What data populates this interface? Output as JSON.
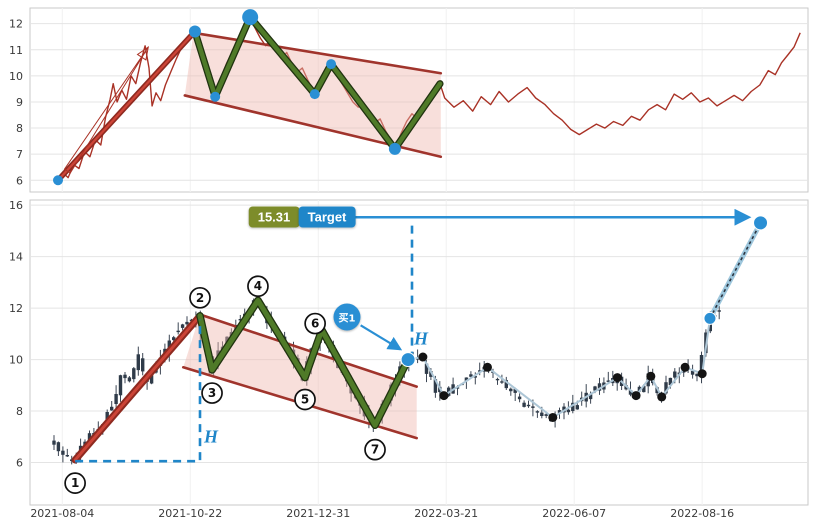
{
  "colors": {
    "background": "#ffffff",
    "grid": "#e4e4e4",
    "border": "#c9c9c9",
    "axis_text": "#3a3a3a",
    "price_red": "#a93226",
    "pole_red": "#8e2a20",
    "pole_core": "#cc4437",
    "channel_line": "#a0342c",
    "channel_fill": "#f0b9b0",
    "zigzag_green": "#4f7a28",
    "zigzag_edge": "#203310",
    "blue": "#2a8fd4",
    "dash_blue": "#1f86c9",
    "candle": "#2f3b49",
    "wick": "#3c4654",
    "post_line": "#adc6d6",
    "rally_line": "#9ec7dd",
    "rally_dash": "#2b3440",
    "black_dot": "#141414",
    "target_value_bg": "#7d8c2a",
    "target_label_bg": "#1f86c9",
    "circle_stroke": "#111111"
  },
  "annotations": {
    "target_value": "15.31",
    "target_label": "Target",
    "buy_label": "买1",
    "h_label": "H"
  },
  "chart_data": [
    {
      "id": "flag-pattern-sketch",
      "type": "line",
      "ylim": [
        5.55,
        12.6
      ],
      "yticks": [
        6,
        7,
        8,
        9,
        10,
        11,
        12
      ],
      "grid": true,
      "price_line": [
        [
          0.036,
          6.0
        ],
        [
          0.042,
          6.3
        ],
        [
          0.049,
          6.1
        ],
        [
          0.056,
          6.6
        ],
        [
          0.063,
          6.45
        ],
        [
          0.07,
          7.1
        ],
        [
          0.077,
          6.9
        ],
        [
          0.084,
          7.55
        ],
        [
          0.091,
          7.35
        ],
        [
          0.097,
          8.4
        ],
        [
          0.103,
          9.1
        ],
        [
          0.107,
          9.7
        ],
        [
          0.112,
          9.0
        ],
        [
          0.118,
          9.45
        ],
        [
          0.124,
          9.1
        ],
        [
          0.13,
          10.0
        ],
        [
          0.136,
          9.7
        ],
        [
          0.142,
          10.5
        ],
        [
          0.148,
          11.15
        ],
        [
          0.153,
          10.3
        ],
        [
          0.157,
          8.85
        ],
        [
          0.162,
          9.35
        ],
        [
          0.168,
          9.05
        ],
        [
          0.174,
          9.65
        ],
        [
          0.181,
          10.15
        ],
        [
          0.188,
          10.65
        ],
        [
          0.195,
          11.1
        ],
        [
          0.202,
          11.3
        ],
        [
          0.208,
          11.5
        ],
        [
          0.213,
          11.7
        ],
        [
          0.22,
          11.2
        ],
        [
          0.227,
          10.35
        ],
        [
          0.233,
          9.75
        ],
        [
          0.238,
          9.2
        ],
        [
          0.245,
          9.9
        ],
        [
          0.253,
          10.5
        ],
        [
          0.261,
          10.95
        ],
        [
          0.269,
          11.5
        ],
        [
          0.276,
          11.95
        ],
        [
          0.283,
          12.25
        ],
        [
          0.289,
          11.85
        ],
        [
          0.296,
          11.45
        ],
        [
          0.303,
          11.15
        ],
        [
          0.309,
          11.4
        ],
        [
          0.316,
          10.95
        ],
        [
          0.323,
          10.65
        ],
        [
          0.33,
          10.9
        ],
        [
          0.337,
          10.45
        ],
        [
          0.344,
          10.15
        ],
        [
          0.35,
          10.3
        ],
        [
          0.357,
          9.85
        ],
        [
          0.362,
          9.55
        ],
        [
          0.366,
          9.3
        ],
        [
          0.372,
          9.85
        ],
        [
          0.379,
          10.15
        ],
        [
          0.387,
          10.45
        ],
        [
          0.394,
          10.05
        ],
        [
          0.401,
          9.7
        ],
        [
          0.408,
          9.35
        ],
        [
          0.415,
          9.0
        ],
        [
          0.422,
          8.8
        ],
        [
          0.429,
          8.95
        ],
        [
          0.436,
          8.5
        ],
        [
          0.443,
          8.2
        ],
        [
          0.45,
          8.35
        ],
        [
          0.457,
          7.9
        ],
        [
          0.463,
          7.6
        ],
        [
          0.469,
          7.2
        ],
        [
          0.477,
          7.8
        ],
        [
          0.484,
          8.25
        ],
        [
          0.491,
          8.55
        ],
        [
          0.498,
          8.35
        ],
        [
          0.505,
          8.75
        ],
        [
          0.512,
          9.05
        ],
        [
          0.519,
          9.4
        ],
        [
          0.527,
          9.7
        ],
        [
          0.533,
          9.15
        ],
        [
          0.545,
          8.8
        ],
        [
          0.557,
          9.05
        ],
        [
          0.569,
          8.65
        ],
        [
          0.58,
          9.2
        ],
        [
          0.592,
          8.9
        ],
        [
          0.603,
          9.4
        ],
        [
          0.615,
          9.0
        ],
        [
          0.627,
          9.3
        ],
        [
          0.639,
          9.55
        ],
        [
          0.65,
          9.15
        ],
        [
          0.662,
          8.9
        ],
        [
          0.673,
          8.55
        ],
        [
          0.684,
          8.3
        ],
        [
          0.695,
          7.95
        ],
        [
          0.706,
          7.75
        ],
        [
          0.717,
          7.95
        ],
        [
          0.728,
          8.15
        ],
        [
          0.739,
          8.0
        ],
        [
          0.75,
          8.25
        ],
        [
          0.762,
          8.1
        ],
        [
          0.773,
          8.45
        ],
        [
          0.784,
          8.3
        ],
        [
          0.795,
          8.7
        ],
        [
          0.806,
          8.9
        ],
        [
          0.817,
          8.7
        ],
        [
          0.828,
          9.3
        ],
        [
          0.839,
          9.1
        ],
        [
          0.85,
          9.35
        ],
        [
          0.861,
          9.0
        ],
        [
          0.872,
          9.15
        ],
        [
          0.883,
          8.85
        ],
        [
          0.894,
          9.05
        ],
        [
          0.905,
          9.25
        ],
        [
          0.916,
          9.05
        ],
        [
          0.927,
          9.4
        ],
        [
          0.938,
          9.65
        ],
        [
          0.949,
          10.2
        ],
        [
          0.958,
          10.05
        ],
        [
          0.966,
          10.5
        ],
        [
          0.974,
          10.8
        ],
        [
          0.982,
          11.1
        ],
        [
          0.99,
          11.65
        ]
      ],
      "pole": {
        "from": [
          0.036,
          6.0
        ],
        "to": [
          0.212,
          11.7
        ]
      },
      "pole_arrow": {
        "from": [
          0.048,
          6.35
        ],
        "to": [
          0.152,
          11.1
        ]
      },
      "channel": {
        "upper": [
          [
            0.21,
            11.65
          ],
          [
            0.528,
            10.1
          ]
        ],
        "lower": [
          [
            0.199,
            9.25
          ],
          [
            0.528,
            6.9
          ]
        ]
      },
      "zigzag": [
        [
          0.212,
          11.7
        ],
        [
          0.238,
          9.2
        ],
        [
          0.283,
          12.25
        ],
        [
          0.366,
          9.3
        ],
        [
          0.387,
          10.45
        ],
        [
          0.469,
          7.2
        ],
        [
          0.527,
          9.7
        ]
      ],
      "blue_dots": [
        [
          0.036,
          6.0,
          5
        ],
        [
          0.212,
          11.7,
          6
        ],
        [
          0.238,
          9.2,
          5
        ],
        [
          0.283,
          12.25,
          8
        ],
        [
          0.366,
          9.3,
          5
        ],
        [
          0.387,
          10.45,
          5
        ],
        [
          0.469,
          7.2,
          6
        ]
      ]
    },
    {
      "id": "candlestick-chart",
      "type": "candlestick",
      "ylim": [
        4.35,
        16.2
      ],
      "yticks": [
        6,
        8,
        10,
        12,
        14,
        16
      ],
      "grid": true,
      "xticks": [
        {
          "t": 0.0415,
          "label": "2021-08-04"
        },
        {
          "t": 0.206,
          "label": "2021-10-22"
        },
        {
          "t": 0.3705,
          "label": "2021-12-31"
        },
        {
          "t": 0.535,
          "label": "2022-03-21"
        },
        {
          "t": 0.6995,
          "label": "2022-06-07"
        },
        {
          "t": 0.864,
          "label": "2022-08-16"
        }
      ],
      "price_path": [
        [
          0.03,
          6.85
        ],
        [
          0.04,
          6.4
        ],
        [
          0.052,
          6.2
        ],
        [
          0.058,
          6.1
        ],
        [
          0.068,
          6.55
        ],
        [
          0.078,
          6.95
        ],
        [
          0.088,
          7.3
        ],
        [
          0.098,
          7.7
        ],
        [
          0.106,
          8.2
        ],
        [
          0.113,
          8.55
        ],
        [
          0.12,
          9.55
        ],
        [
          0.127,
          9.05
        ],
        [
          0.134,
          9.35
        ],
        [
          0.141,
          10.2
        ],
        [
          0.147,
          9.45
        ],
        [
          0.154,
          9.1
        ],
        [
          0.162,
          9.6
        ],
        [
          0.17,
          10.0
        ],
        [
          0.178,
          10.5
        ],
        [
          0.188,
          11.0
        ],
        [
          0.2,
          11.35
        ],
        [
          0.21,
          11.6
        ],
        [
          0.218,
          11.7
        ],
        [
          0.226,
          10.6
        ],
        [
          0.234,
          9.6
        ],
        [
          0.242,
          10.1
        ],
        [
          0.252,
          10.7
        ],
        [
          0.262,
          11.15
        ],
        [
          0.272,
          11.6
        ],
        [
          0.282,
          11.95
        ],
        [
          0.293,
          12.3
        ],
        [
          0.302,
          11.8
        ],
        [
          0.312,
          11.3
        ],
        [
          0.322,
          10.85
        ],
        [
          0.332,
          10.45
        ],
        [
          0.342,
          9.9
        ],
        [
          0.353,
          9.3
        ],
        [
          0.363,
          10.2
        ],
        [
          0.375,
          11.15
        ],
        [
          0.386,
          10.5
        ],
        [
          0.396,
          9.9
        ],
        [
          0.406,
          9.3
        ],
        [
          0.416,
          8.7
        ],
        [
          0.426,
          8.2
        ],
        [
          0.435,
          7.8
        ],
        [
          0.443,
          7.45
        ],
        [
          0.452,
          8.0
        ],
        [
          0.462,
          8.6
        ],
        [
          0.472,
          9.2
        ],
        [
          0.48,
          9.7
        ],
        [
          0.486,
          10.0
        ],
        [
          0.496,
          10.15
        ],
        [
          0.505,
          10.1
        ],
        [
          0.515,
          9.4
        ],
        [
          0.524,
          8.85
        ],
        [
          0.532,
          8.6
        ],
        [
          0.545,
          8.9
        ],
        [
          0.558,
          9.2
        ],
        [
          0.572,
          9.45
        ],
        [
          0.588,
          9.7
        ],
        [
          0.6,
          9.3
        ],
        [
          0.614,
          8.95
        ],
        [
          0.628,
          8.55
        ],
        [
          0.642,
          8.2
        ],
        [
          0.658,
          7.95
        ],
        [
          0.672,
          7.75
        ],
        [
          0.685,
          8.0
        ],
        [
          0.7,
          8.2
        ],
        [
          0.714,
          8.5
        ],
        [
          0.728,
          8.8
        ],
        [
          0.742,
          9.1
        ],
        [
          0.755,
          9.3
        ],
        [
          0.766,
          8.95
        ],
        [
          0.779,
          8.6
        ],
        [
          0.789,
          9.0
        ],
        [
          0.798,
          9.35
        ],
        [
          0.806,
          8.9
        ],
        [
          0.812,
          8.55
        ],
        [
          0.822,
          9.1
        ],
        [
          0.832,
          9.45
        ],
        [
          0.842,
          9.7
        ],
        [
          0.852,
          9.55
        ],
        [
          0.862,
          9.45
        ],
        [
          0.874,
          11.6
        ],
        [
          0.885,
          11.9
        ]
      ],
      "pole": {
        "from": [
          0.058,
          6.1
        ],
        "to": [
          0.2185,
          11.7
        ]
      },
      "channel": {
        "upper": [
          [
            0.2185,
            11.75
          ],
          [
            0.497,
            8.95
          ]
        ],
        "lower": [
          [
            0.197,
            9.7
          ],
          [
            0.497,
            6.95
          ]
        ]
      },
      "zigzag": [
        [
          0.2185,
          11.7
        ],
        [
          0.234,
          9.6
        ],
        [
          0.293,
          12.3
        ],
        [
          0.3535,
          9.3
        ],
        [
          0.375,
          11.15
        ],
        [
          0.4435,
          7.45
        ],
        [
          0.486,
          10.0
        ]
      ],
      "point_labels": [
        {
          "n": "1",
          "t": 0.058,
          "v": 5.2
        },
        {
          "n": "2",
          "t": 0.2185,
          "v": 12.4
        },
        {
          "n": "3",
          "t": 0.234,
          "v": 8.7
        },
        {
          "n": "4",
          "t": 0.293,
          "v": 12.85
        },
        {
          "n": "5",
          "t": 0.3535,
          "v": 8.45
        },
        {
          "n": "6",
          "t": 0.3665,
          "v": 11.4
        },
        {
          "n": "7",
          "t": 0.4435,
          "v": 6.5
        }
      ],
      "post_dots": [
        [
          0.505,
          10.1
        ],
        [
          0.532,
          8.6
        ],
        [
          0.588,
          9.7
        ],
        [
          0.672,
          7.75
        ],
        [
          0.755,
          9.3
        ],
        [
          0.779,
          8.6
        ],
        [
          0.798,
          9.35
        ],
        [
          0.812,
          8.55
        ],
        [
          0.842,
          9.7
        ],
        [
          0.864,
          9.45
        ]
      ],
      "post_line": [
        [
          0.486,
          10.0
        ],
        [
          0.505,
          10.1
        ],
        [
          0.532,
          8.6
        ],
        [
          0.588,
          9.7
        ],
        [
          0.672,
          7.75
        ],
        [
          0.755,
          9.3
        ],
        [
          0.779,
          8.6
        ],
        [
          0.798,
          9.35
        ],
        [
          0.812,
          8.55
        ],
        [
          0.842,
          9.7
        ],
        [
          0.864,
          9.45
        ],
        [
          0.874,
          11.6
        ]
      ],
      "rally": {
        "from": [
          0.874,
          11.6
        ],
        "to": [
          0.939,
          15.31
        ]
      },
      "blue_dots": [
        [
          0.486,
          10.0,
          7
        ],
        [
          0.874,
          11.6,
          6
        ],
        [
          0.939,
          15.31,
          7
        ]
      ],
      "markers": {
        "measure_L": [
          [
            0.058,
            6.05
          ],
          [
            0.2185,
            6.05
          ],
          [
            0.2185,
            11.55
          ]
        ],
        "measure_V": [
          [
            0.491,
            10.0
          ],
          [
            0.491,
            15.31
          ]
        ],
        "target_arrow": {
          "from": [
            0.418,
            15.53
          ],
          "to": [
            0.924,
            15.53
          ]
        },
        "buy_arrow": {
          "from": [
            0.425,
            11.33
          ],
          "to": [
            0.476,
            10.4
          ]
        },
        "target_value_box": {
          "t": 0.3136,
          "v": 15.53
        },
        "target_label_box": {
          "t": 0.3817,
          "v": 15.53
        },
        "buy_circle": {
          "t": 0.4075,
          "v": 11.67
        },
        "h1": {
          "t": 0.2326,
          "v": 7.0
        },
        "h2": {
          "t": 0.5026,
          "v": 10.8
        }
      }
    }
  ]
}
